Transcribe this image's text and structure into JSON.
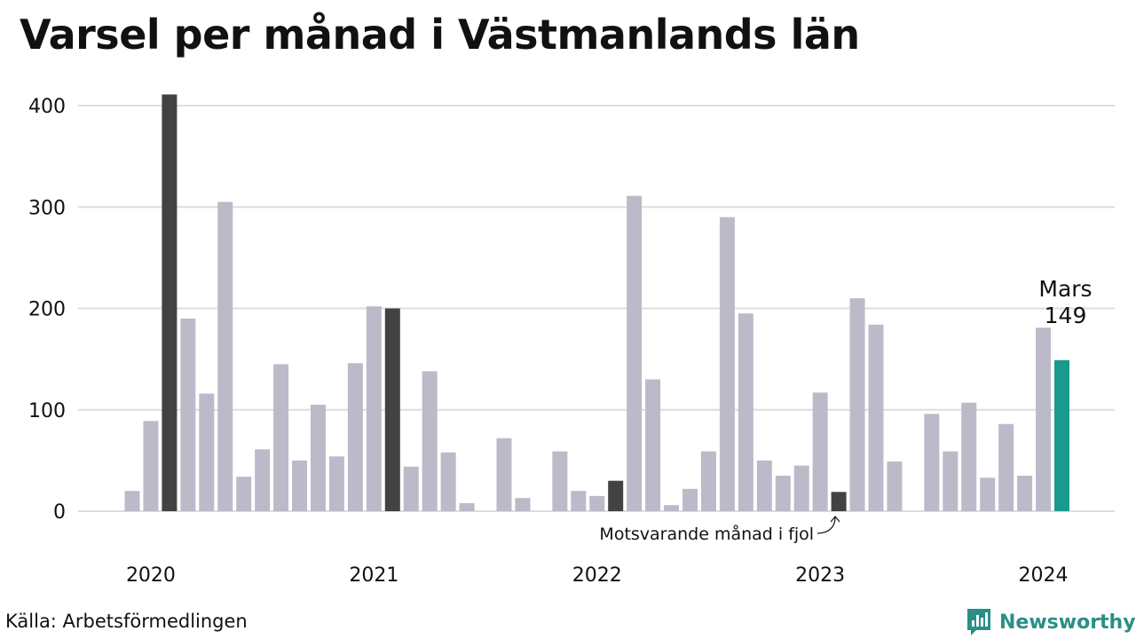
{
  "title": "Varsel per månad i Västmanlands län",
  "source": "Källa: Arbetsförmedlingen",
  "brand": "Newsworthy",
  "colors": {
    "bar_default": "#bcbac9",
    "bar_same_month": "#424242",
    "bar_latest": "#1a9a8c",
    "grid": "#dddddd",
    "brand": "#2a8f86"
  },
  "chart_data": {
    "type": "bar",
    "ylim": [
      0,
      420
    ],
    "yticks": [
      0,
      100,
      200,
      300,
      400
    ],
    "year_labels": [
      {
        "label": "2020",
        "month_index": 1
      },
      {
        "label": "2021",
        "month_index": 13
      },
      {
        "label": "2022",
        "month_index": 25
      },
      {
        "label": "2023",
        "month_index": 37
      },
      {
        "label": "2024",
        "month_index": 49
      }
    ],
    "months": [
      {
        "month": "2020-01",
        "value": 20,
        "kind": "default"
      },
      {
        "month": "2020-02",
        "value": 89,
        "kind": "default"
      },
      {
        "month": "2020-03",
        "value": 411,
        "kind": "same_month"
      },
      {
        "month": "2020-04",
        "value": 190,
        "kind": "default"
      },
      {
        "month": "2020-05",
        "value": 116,
        "kind": "default"
      },
      {
        "month": "2020-06",
        "value": 305,
        "kind": "default"
      },
      {
        "month": "2020-07",
        "value": 34,
        "kind": "default"
      },
      {
        "month": "2020-08",
        "value": 61,
        "kind": "default"
      },
      {
        "month": "2020-09",
        "value": 145,
        "kind": "default"
      },
      {
        "month": "2020-10",
        "value": 50,
        "kind": "default"
      },
      {
        "month": "2020-11",
        "value": 105,
        "kind": "default"
      },
      {
        "month": "2020-12",
        "value": 54,
        "kind": "default"
      },
      {
        "month": "2021-01",
        "value": 146,
        "kind": "default"
      },
      {
        "month": "2021-02",
        "value": 202,
        "kind": "default"
      },
      {
        "month": "2021-03",
        "value": 200,
        "kind": "same_month"
      },
      {
        "month": "2021-04",
        "value": 44,
        "kind": "default"
      },
      {
        "month": "2021-05",
        "value": 138,
        "kind": "default"
      },
      {
        "month": "2021-06",
        "value": 58,
        "kind": "default"
      },
      {
        "month": "2021-07",
        "value": 8,
        "kind": "default"
      },
      {
        "month": "2021-08",
        "value": 0,
        "kind": "default"
      },
      {
        "month": "2021-09",
        "value": 72,
        "kind": "default"
      },
      {
        "month": "2021-10",
        "value": 13,
        "kind": "default"
      },
      {
        "month": "2021-11",
        "value": 0,
        "kind": "default"
      },
      {
        "month": "2021-12",
        "value": 59,
        "kind": "default"
      },
      {
        "month": "2022-01",
        "value": 20,
        "kind": "default"
      },
      {
        "month": "2022-02",
        "value": 15,
        "kind": "default"
      },
      {
        "month": "2022-03",
        "value": 30,
        "kind": "same_month"
      },
      {
        "month": "2022-04",
        "value": 311,
        "kind": "default"
      },
      {
        "month": "2022-05",
        "value": 130,
        "kind": "default"
      },
      {
        "month": "2022-06",
        "value": 6,
        "kind": "default"
      },
      {
        "month": "2022-07",
        "value": 22,
        "kind": "default"
      },
      {
        "month": "2022-08",
        "value": 59,
        "kind": "default"
      },
      {
        "month": "2022-09",
        "value": 290,
        "kind": "default"
      },
      {
        "month": "2022-10",
        "value": 195,
        "kind": "default"
      },
      {
        "month": "2022-11",
        "value": 50,
        "kind": "default"
      },
      {
        "month": "2022-12",
        "value": 35,
        "kind": "default"
      },
      {
        "month": "2023-01",
        "value": 45,
        "kind": "default"
      },
      {
        "month": "2023-02",
        "value": 117,
        "kind": "default"
      },
      {
        "month": "2023-03",
        "value": 19,
        "kind": "same_month"
      },
      {
        "month": "2023-04",
        "value": 210,
        "kind": "default"
      },
      {
        "month": "2023-05",
        "value": 184,
        "kind": "default"
      },
      {
        "month": "2023-06",
        "value": 49,
        "kind": "default"
      },
      {
        "month": "2023-07",
        "value": 0,
        "kind": "default"
      },
      {
        "month": "2023-08",
        "value": 96,
        "kind": "default"
      },
      {
        "month": "2023-09",
        "value": 59,
        "kind": "default"
      },
      {
        "month": "2023-10",
        "value": 107,
        "kind": "default"
      },
      {
        "month": "2023-11",
        "value": 33,
        "kind": "default"
      },
      {
        "month": "2023-12",
        "value": 86,
        "kind": "default"
      },
      {
        "month": "2024-01",
        "value": 35,
        "kind": "default"
      },
      {
        "month": "2024-02",
        "value": 181,
        "kind": "default"
      },
      {
        "month": "2024-03",
        "value": 149,
        "kind": "latest"
      }
    ],
    "annotations": {
      "latest_month": "Mars",
      "latest_value": "149",
      "same_month_note": "Motsvarande månad i fjol"
    }
  }
}
